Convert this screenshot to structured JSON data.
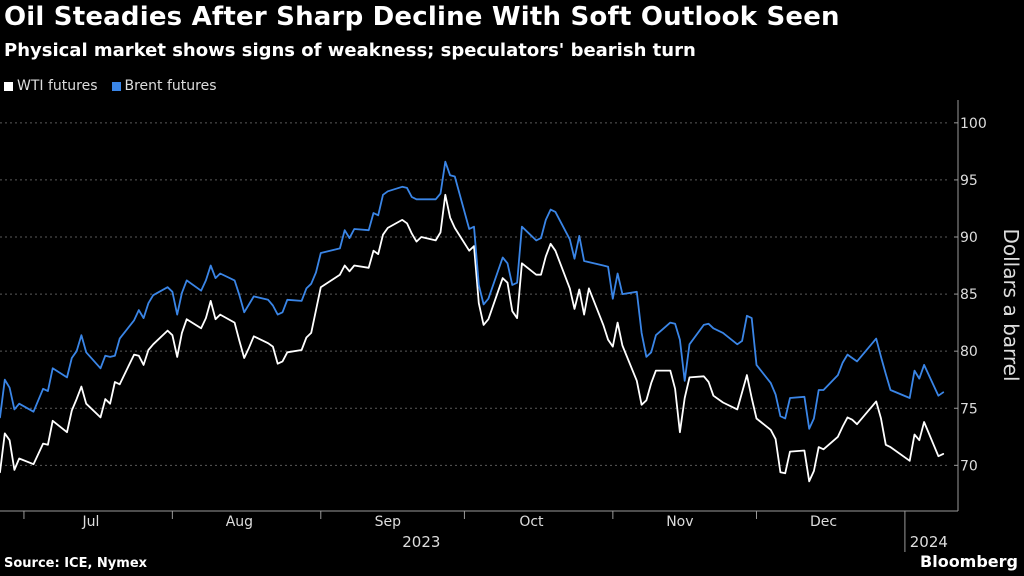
{
  "header": {
    "title": "Oil Steadies After Sharp Decline With Soft Outlook Seen",
    "subtitle": "Physical market shows signs of weakness; speculators' bearish turn"
  },
  "legend": [
    {
      "label": "WTI futures",
      "color": "#ffffff"
    },
    {
      "label": "Brent futures",
      "color": "#3a85e6"
    }
  ],
  "footer": {
    "source": "Source: ICE, Nymex",
    "brand": "Bloomberg"
  },
  "chart_data": {
    "type": "line",
    "title": "Oil Steadies After Sharp Decline With Soft Outlook Seen",
    "subtitle": "Physical market shows signs of weakness; speculators' bearish turn",
    "ylabel": "Dollars a barrel",
    "ylim": [
      66,
      102
    ],
    "yticks": [
      70,
      75,
      80,
      85,
      90,
      95,
      100
    ],
    "y_axis_position": "right",
    "grid": "horizontal dashed",
    "legend_position": "top-left",
    "x_start": "2023-06-26",
    "x_end": "2024-01-10",
    "month_ticks": [
      {
        "label": "Jul",
        "date": "2023-07-01",
        "label_date": "2023-07-15"
      },
      {
        "label": "Aug",
        "date": "2023-08-01",
        "label_date": "2023-08-15"
      },
      {
        "label": "Sep",
        "date": "2023-09-01",
        "label_date": "2023-09-15"
      },
      {
        "label": "Oct",
        "date": "2023-10-01",
        "label_date": "2023-10-15"
      },
      {
        "label": "Nov",
        "date": "2023-11-01",
        "label_date": "2023-11-15"
      },
      {
        "label": "Dec",
        "date": "2023-12-01",
        "label_date": "2023-12-15"
      }
    ],
    "year_labels": [
      {
        "label": "2023",
        "date": "2023-09-22"
      },
      {
        "label": "2024",
        "date": "2024-01-06"
      }
    ],
    "year_divider_date": "2024-01-01",
    "x": [
      "2023-06-26",
      "2023-06-27",
      "2023-06-28",
      "2023-06-29",
      "2023-06-30",
      "2023-07-03",
      "2023-07-05",
      "2023-07-06",
      "2023-07-07",
      "2023-07-10",
      "2023-07-11",
      "2023-07-12",
      "2023-07-13",
      "2023-07-14",
      "2023-07-17",
      "2023-07-18",
      "2023-07-19",
      "2023-07-20",
      "2023-07-21",
      "2023-07-24",
      "2023-07-25",
      "2023-07-26",
      "2023-07-27",
      "2023-07-28",
      "2023-07-31",
      "2023-08-01",
      "2023-08-02",
      "2023-08-03",
      "2023-08-04",
      "2023-08-07",
      "2023-08-08",
      "2023-08-09",
      "2023-08-10",
      "2023-08-11",
      "2023-08-14",
      "2023-08-15",
      "2023-08-16",
      "2023-08-17",
      "2023-08-18",
      "2023-08-21",
      "2023-08-22",
      "2023-08-23",
      "2023-08-24",
      "2023-08-25",
      "2023-08-28",
      "2023-08-29",
      "2023-08-30",
      "2023-08-31",
      "2023-09-01",
      "2023-09-05",
      "2023-09-06",
      "2023-09-07",
      "2023-09-08",
      "2023-09-11",
      "2023-09-12",
      "2023-09-13",
      "2023-09-14",
      "2023-09-15",
      "2023-09-18",
      "2023-09-19",
      "2023-09-20",
      "2023-09-21",
      "2023-09-22",
      "2023-09-25",
      "2023-09-26",
      "2023-09-27",
      "2023-09-28",
      "2023-09-29",
      "2023-10-02",
      "2023-10-03",
      "2023-10-04",
      "2023-10-05",
      "2023-10-06",
      "2023-10-09",
      "2023-10-10",
      "2023-10-11",
      "2023-10-12",
      "2023-10-13",
      "2023-10-16",
      "2023-10-17",
      "2023-10-18",
      "2023-10-19",
      "2023-10-20",
      "2023-10-23",
      "2023-10-24",
      "2023-10-25",
      "2023-10-26",
      "2023-10-27",
      "2023-10-30",
      "2023-10-31",
      "2023-11-01",
      "2023-11-02",
      "2023-11-03",
      "2023-11-06",
      "2023-11-07",
      "2023-11-08",
      "2023-11-09",
      "2023-11-10",
      "2023-11-13",
      "2023-11-14",
      "2023-11-15",
      "2023-11-16",
      "2023-11-17",
      "2023-11-20",
      "2023-11-21",
      "2023-11-22",
      "2023-11-24",
      "2023-11-27",
      "2023-11-28",
      "2023-11-29",
      "2023-11-30",
      "2023-12-01",
      "2023-12-04",
      "2023-12-05",
      "2023-12-06",
      "2023-12-07",
      "2023-12-08",
      "2023-12-11",
      "2023-12-12",
      "2023-12-13",
      "2023-12-14",
      "2023-12-15",
      "2023-12-18",
      "2023-12-19",
      "2023-12-20",
      "2023-12-21",
      "2023-12-22",
      "2023-12-26",
      "2023-12-27",
      "2023-12-28",
      "2023-12-29",
      "2024-01-02",
      "2024-01-03",
      "2024-01-04",
      "2024-01-05",
      "2024-01-08",
      "2024-01-09"
    ],
    "series": [
      {
        "name": "WTI futures",
        "color": "#ffffff",
        "values": [
          69.4,
          72.8,
          72.2,
          69.6,
          70.6,
          70.1,
          71.9,
          71.8,
          73.9,
          72.9,
          74.8,
          75.8,
          76.9,
          75.4,
          74.2,
          75.8,
          75.4,
          77.3,
          77.1,
          79.7,
          79.6,
          78.8,
          80.1,
          80.6,
          81.8,
          81.4,
          79.5,
          81.6,
          82.8,
          82.0,
          82.9,
          84.4,
          82.8,
          83.2,
          82.5,
          80.9,
          79.4,
          80.3,
          81.3,
          80.7,
          80.4,
          78.9,
          79.1,
          79.9,
          80.1,
          81.2,
          81.6,
          83.6,
          85.6,
          86.7,
          87.5,
          87.0,
          87.5,
          87.3,
          88.8,
          88.5,
          90.2,
          90.8,
          91.5,
          91.2,
          90.3,
          89.6,
          90.0,
          89.7,
          90.4,
          93.7,
          91.7,
          90.8,
          88.8,
          89.2,
          84.2,
          82.3,
          82.8,
          86.4,
          86.0,
          83.5,
          82.9,
          87.7,
          86.7,
          86.7,
          88.3,
          89.4,
          88.8,
          85.5,
          83.7,
          85.4,
          83.2,
          85.5,
          82.3,
          81.0,
          80.4,
          82.5,
          80.5,
          77.4,
          75.3,
          75.7,
          77.2,
          78.3,
          78.3,
          76.7,
          72.9,
          75.9,
          77.7,
          77.8,
          77.3,
          76.1,
          75.5,
          74.9,
          76.4,
          77.9,
          75.9,
          74.1,
          73.1,
          72.3,
          69.4,
          69.3,
          71.2,
          71.3,
          68.6,
          69.5,
          71.6,
          71.4,
          72.5,
          73.4,
          74.2,
          74.0,
          73.6,
          75.6,
          74.1,
          71.8,
          71.6,
          70.4,
          72.7,
          72.2,
          73.8,
          70.8,
          71.0
        ]
      },
      {
        "name": "Brent futures",
        "color": "#3a85e6",
        "values": [
          74.2,
          77.5,
          76.8,
          74.9,
          75.4,
          74.7,
          76.7,
          76.5,
          78.5,
          77.7,
          79.4,
          80.0,
          81.4,
          79.9,
          78.5,
          79.6,
          79.5,
          79.6,
          81.1,
          82.7,
          83.6,
          82.9,
          84.2,
          84.9,
          85.6,
          85.2,
          83.2,
          85.1,
          86.2,
          85.3,
          86.2,
          87.5,
          86.4,
          86.8,
          86.2,
          84.9,
          83.4,
          84.1,
          84.8,
          84.5,
          84.0,
          83.2,
          83.4,
          84.5,
          84.4,
          85.5,
          85.9,
          86.9,
          88.6,
          89.0,
          90.6,
          89.9,
          90.7,
          90.6,
          92.1,
          91.9,
          93.7,
          94.0,
          94.4,
          94.3,
          93.5,
          93.3,
          93.3,
          93.3,
          93.8,
          96.6,
          95.4,
          95.3,
          90.7,
          90.9,
          85.8,
          84.1,
          84.6,
          88.2,
          87.7,
          85.8,
          86.0,
          90.9,
          89.7,
          89.9,
          91.5,
          92.4,
          92.2,
          89.8,
          88.1,
          90.1,
          87.9,
          87.8,
          87.5,
          87.4,
          84.6,
          86.8,
          85.0,
          85.2,
          81.6,
          79.5,
          79.9,
          81.4,
          82.5,
          82.4,
          81.0,
          77.4,
          80.6,
          82.3,
          82.4,
          82.0,
          81.6,
          80.6,
          80.9,
          83.1,
          82.9,
          78.8,
          77.2,
          76.2,
          74.3,
          74.1,
          75.9,
          76.0,
          73.2,
          74.1,
          76.6,
          76.6,
          77.9,
          79.0,
          79.7,
          79.4,
          79.1,
          81.1,
          79.5,
          78.0,
          76.6,
          75.9,
          78.3,
          77.6,
          78.8,
          76.1,
          76.4
        ]
      }
    ]
  }
}
